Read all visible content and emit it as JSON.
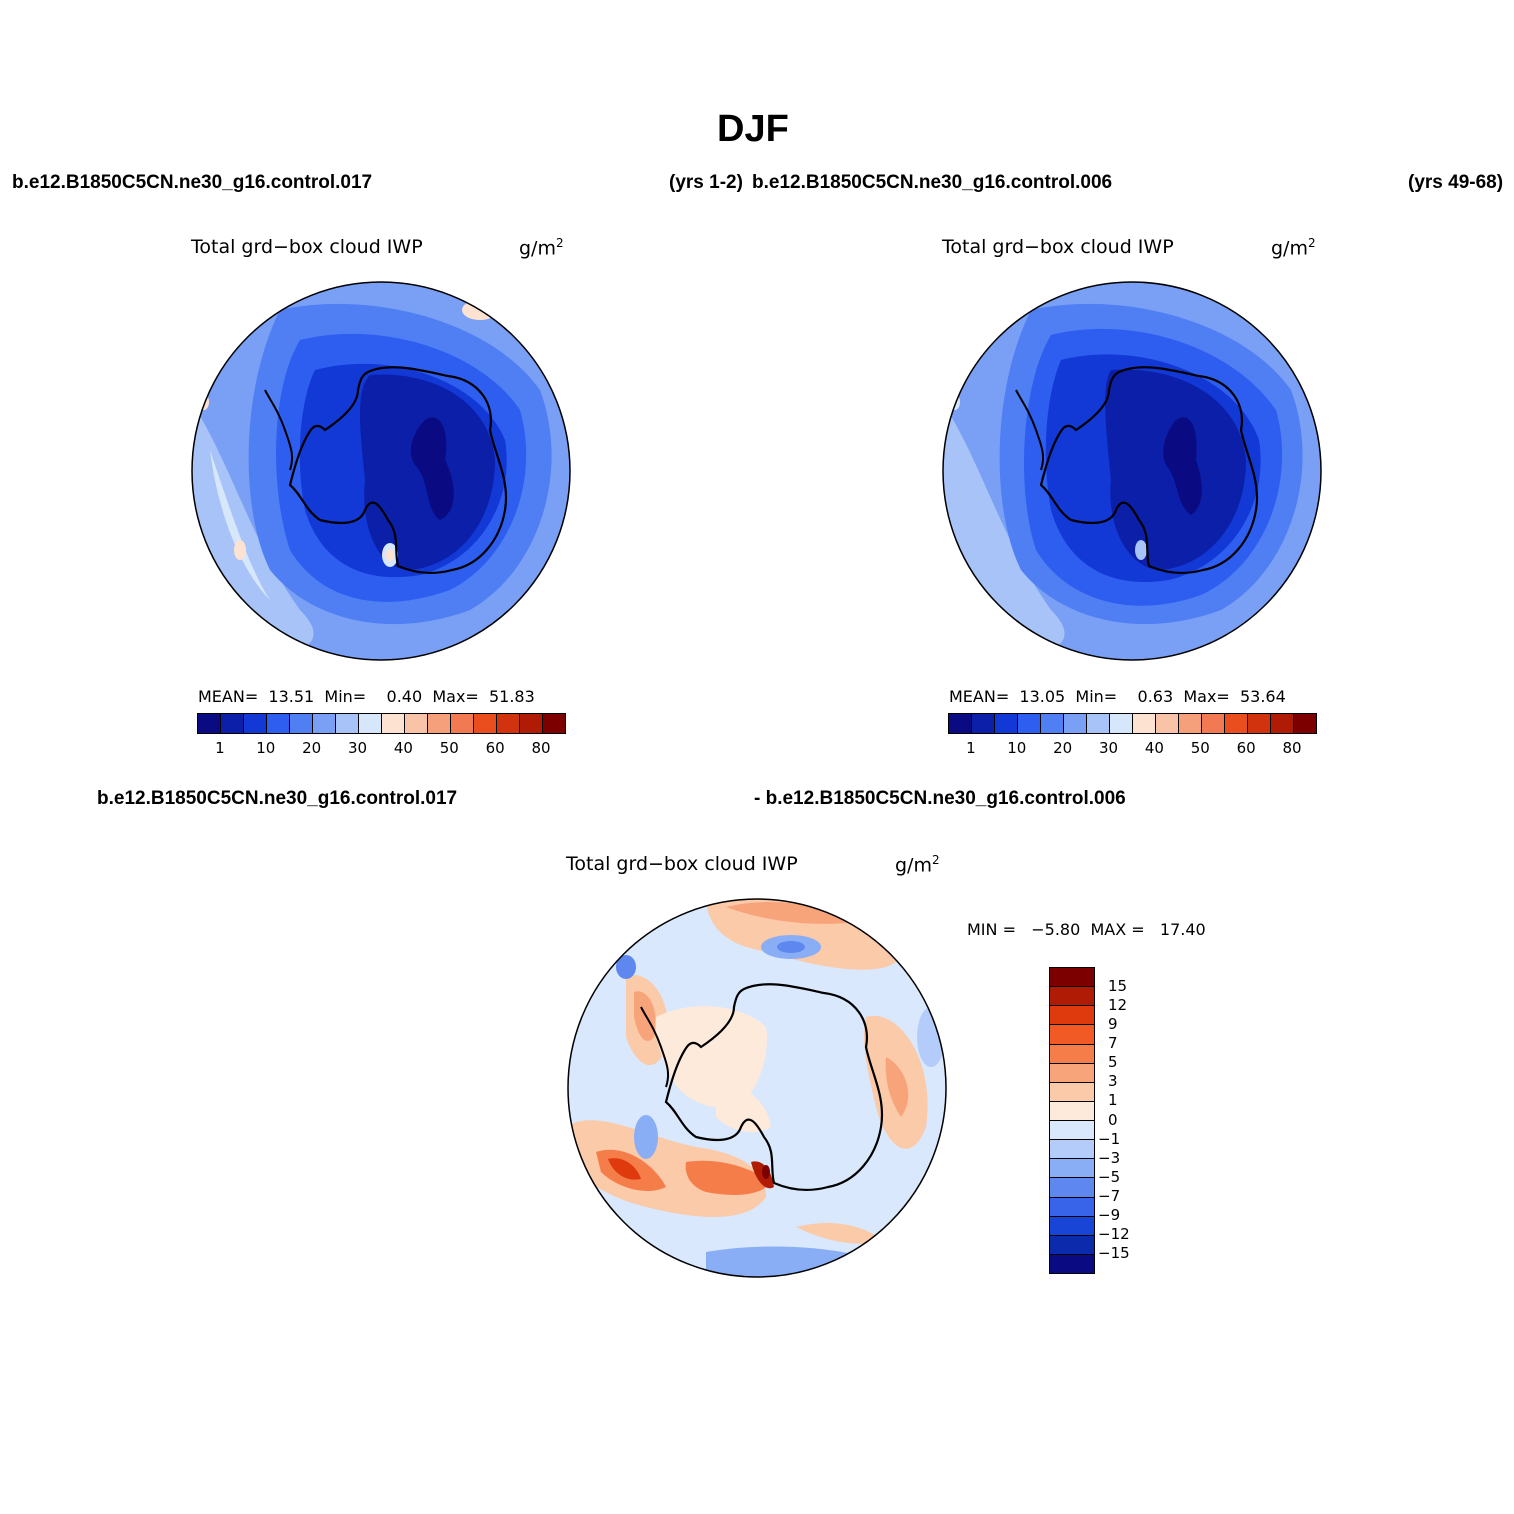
{
  "title": "DJF",
  "case_a": "b.e12.B1850C5CN.ne30_g16.control.017",
  "case_a_years": "(yrs 1-2)",
  "case_b": "b.e12.B1850C5CN.ne30_g16.control.006",
  "case_b_years": "(yrs 49-68)",
  "diff_case_a": "b.e12.B1850C5CN.ne30_g16.control.017",
  "diff_case_b": "- b.e12.B1850C5CN.ne30_g16.control.006",
  "panels": [
    {
      "label": "Total grd−box cloud IWP",
      "unit": "g/m",
      "unit_sup": "2",
      "mean_label": "MEAN=",
      "mean": "13.51",
      "min_label": "Min=",
      "min": "0.40",
      "max_label": "Max=",
      "max": "51.83"
    },
    {
      "label": "Total grd−box cloud IWP",
      "unit": "g/m",
      "unit_sup": "2",
      "mean_label": "MEAN=",
      "mean": "13.05",
      "min_label": "Min=",
      "min": "0.63",
      "max_label": "Max=",
      "max": "53.64"
    }
  ],
  "diff_panel": {
    "label": "Total grd−box cloud IWP",
    "unit": "g/m",
    "unit_sup": "2",
    "minmax": "MIN =   −5.80  MAX =   17.40"
  },
  "colorbar_main": {
    "colors": [
      "#0a0a82",
      "#0b1fa8",
      "#1238d6",
      "#2d5ef0",
      "#4f7ff2",
      "#7aa0f5",
      "#a8c3f8",
      "#d6e6fb",
      "#fde2d2",
      "#f9c3a7",
      "#f5a07b",
      "#f27a52",
      "#ea4e1f",
      "#d2330f",
      "#b01b05",
      "#7d0000"
    ],
    "ticks": [
      "1",
      "10",
      "20",
      "30",
      "40",
      "50",
      "60",
      "80"
    ]
  },
  "colorbar_diff": {
    "colors": [
      "#7d0000",
      "#b01b05",
      "#df3a0d",
      "#f25a25",
      "#f57d4a",
      "#f7a47b",
      "#fbcaa9",
      "#feeadb",
      "#d9e8fc",
      "#b3ccf9",
      "#8aaef5",
      "#5e87f0",
      "#3764e8",
      "#1845d6",
      "#0c2aac",
      "#0a0a82"
    ],
    "ticks": [
      "15",
      "12",
      "9",
      "7",
      "5",
      "3",
      "1",
      "0",
      "−1",
      "−3",
      "−5",
      "−7",
      "−9",
      "−12",
      "−15"
    ]
  }
}
